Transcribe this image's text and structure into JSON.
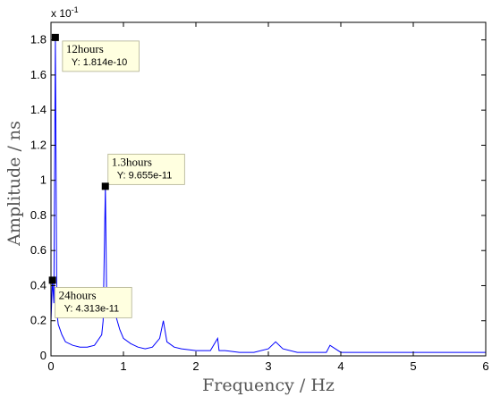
{
  "chart_data": {
    "type": "line",
    "title": "",
    "xlabel": "Frequency / Hz",
    "ylabel": "Amplitude / ns",
    "y_exponent_base": "x 10",
    "y_exponent_power": "-1",
    "xlim": [
      0,
      6
    ],
    "ylim": [
      0,
      1.9
    ],
    "x_ticks": [
      "0",
      "1",
      "2",
      "3",
      "4",
      "5",
      "6"
    ],
    "y_ticks": [
      "0",
      "0.2",
      "0.4",
      "0.6",
      "0.8",
      "1",
      "1.2",
      "1.4",
      "1.6",
      "1.8"
    ],
    "grid": false,
    "line_color": "#0000ff",
    "series": [
      {
        "x": [
          0.0,
          0.02,
          0.04,
          0.06,
          0.08,
          0.1,
          0.15,
          0.2,
          0.3,
          0.4,
          0.5,
          0.6,
          0.7,
          0.72,
          0.75,
          0.77,
          0.8,
          0.85,
          0.9,
          0.95,
          1.0,
          1.1,
          1.2,
          1.3,
          1.4,
          1.5,
          1.55,
          1.6,
          1.7,
          1.8,
          2.0,
          2.2,
          2.3,
          2.32,
          2.4,
          2.6,
          2.8,
          3.0,
          3.1,
          3.2,
          3.4,
          3.6,
          3.8,
          3.85,
          4.0,
          4.5,
          5.0,
          5.5,
          6.0
        ],
        "y": [
          0.2,
          0.431,
          0.3,
          1.814,
          0.25,
          0.18,
          0.12,
          0.08,
          0.06,
          0.05,
          0.05,
          0.06,
          0.12,
          0.2,
          0.966,
          0.25,
          0.35,
          0.3,
          0.22,
          0.15,
          0.1,
          0.07,
          0.05,
          0.04,
          0.05,
          0.1,
          0.2,
          0.08,
          0.05,
          0.04,
          0.03,
          0.03,
          0.1,
          0.03,
          0.03,
          0.02,
          0.02,
          0.04,
          0.08,
          0.04,
          0.02,
          0.02,
          0.02,
          0.06,
          0.02,
          0.02,
          0.02,
          0.02,
          0.02
        ]
      }
    ],
    "datatips": [
      {
        "title": "12hours",
        "value": "Y: 1.814e-10",
        "x": 0.06,
        "y": 1.814
      },
      {
        "title": "1.3hours",
        "value": "Y: 9.655e-11",
        "x": 0.75,
        "y": 0.966
      },
      {
        "title": "24hours",
        "value": "Y: 4.313e-11",
        "x": 0.02,
        "y": 0.431
      }
    ]
  }
}
